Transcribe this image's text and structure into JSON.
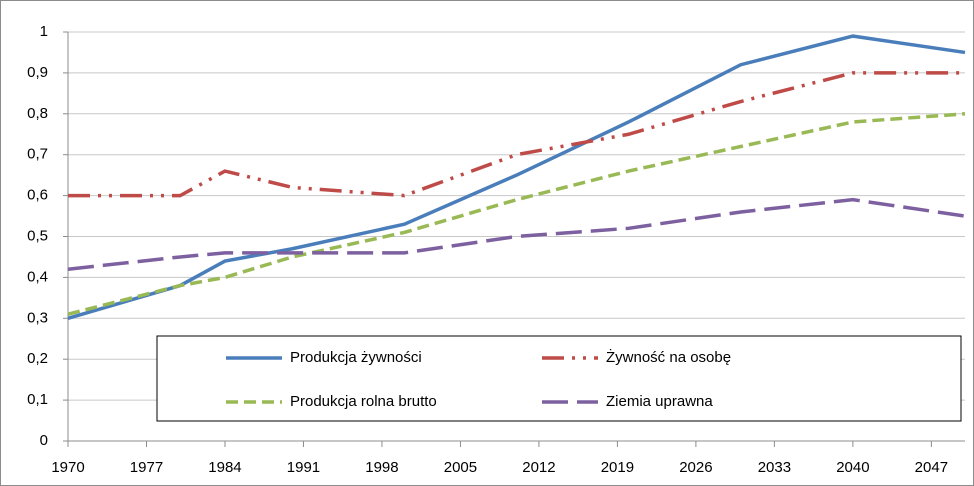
{
  "chart_data": {
    "type": "line",
    "x": [
      1970,
      1980,
      1984,
      1990,
      2000,
      2010,
      2020,
      2030,
      2040,
      2050
    ],
    "series": [
      {
        "name": "Produkcja żywności",
        "color": "#4a7ebb",
        "dash": "solid",
        "values": [
          0.3,
          0.38,
          0.44,
          0.47,
          0.53,
          0.65,
          0.78,
          0.92,
          0.99,
          0.95
        ]
      },
      {
        "name": "Żywność na osobę",
        "color": "#be4b48",
        "dash": "dashdotdot",
        "values": [
          0.6,
          0.6,
          0.66,
          0.62,
          0.6,
          0.7,
          0.75,
          0.83,
          0.9,
          0.9
        ]
      },
      {
        "name": "Produkcja rolna brutto",
        "color": "#98b954",
        "dash": "dashed",
        "values": [
          0.31,
          0.38,
          0.4,
          0.45,
          0.51,
          0.59,
          0.66,
          0.72,
          0.78,
          0.8
        ]
      },
      {
        "name": "Ziemia uprawna",
        "color": "#7d60a0",
        "dash": "longdash",
        "values": [
          0.42,
          0.45,
          0.46,
          0.46,
          0.46,
          0.5,
          0.52,
          0.56,
          0.59,
          0.55
        ]
      }
    ],
    "xlim": [
      1970,
      2050
    ],
    "xticks": [
      1970,
      1977,
      1984,
      1991,
      1998,
      2005,
      2012,
      2019,
      2026,
      2033,
      2040,
      2047
    ],
    "ylim": [
      0,
      1
    ],
    "yticks": [
      0,
      {
        "value": 0.1,
        "label": "0,1"
      },
      {
        "value": 0.2,
        "label": "0,2"
      },
      {
        "value": 0.3,
        "label": "0,3"
      },
      {
        "value": 0.4,
        "label": "0,4"
      },
      {
        "value": 0.5,
        "label": "0,5"
      },
      {
        "value": 0.6,
        "label": "0,6"
      },
      {
        "value": 0.7,
        "label": "0,7"
      },
      {
        "value": 0.8,
        "label": "0,8"
      },
      {
        "value": 0.9,
        "label": "0,9"
      },
      1
    ],
    "grid": true
  }
}
